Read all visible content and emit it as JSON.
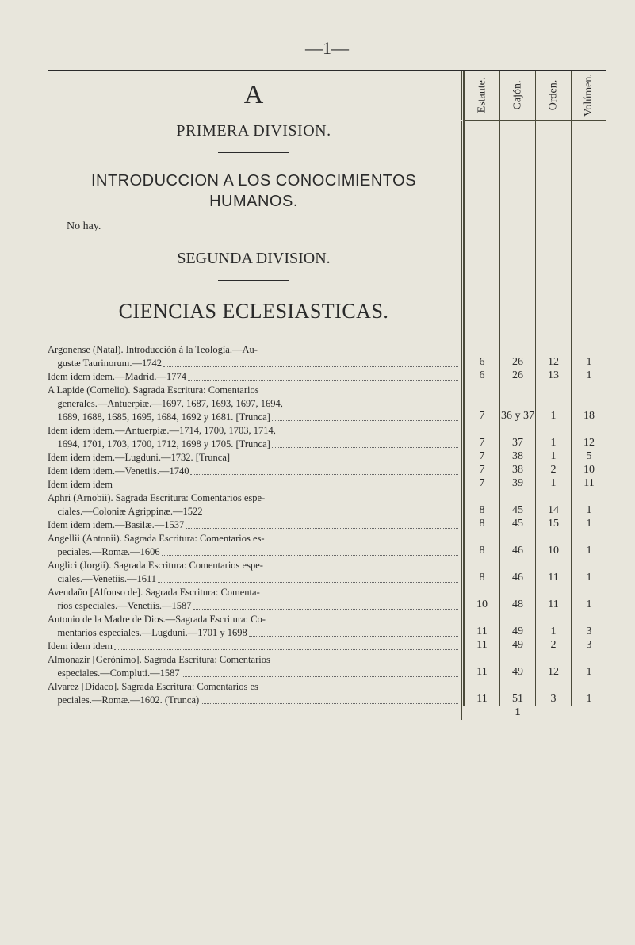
{
  "header_mark": "—1—",
  "columns": [
    "Estante.",
    "Cajón.",
    "Orden.",
    "Volúmen."
  ],
  "section_letter": "A",
  "primera": "PRIMERA DIVISION.",
  "intro": "INTRODUCCION A LOS CONOCIMIENTOS HUMANOS.",
  "nohay": "No hay.",
  "segunda": "SEGUNDA DIVISION.",
  "ciencias": "CIENCIAS ECLESIASTICAS.",
  "footer_page": "1",
  "rows": [
    {
      "text": [
        "Argonense (Natal). Introducción á la Teología.—Au-",
        "gustæ Taurinorum.—1742"
      ],
      "vals": [
        "6",
        "26",
        "12",
        "1"
      ]
    },
    {
      "text": [
        "Idem idem idem.—Madrid.—1774"
      ],
      "vals": [
        "6",
        "26",
        "13",
        "1"
      ]
    },
    {
      "text": [
        "A Lapide (Cornelio). Sagrada Escritura: Comentarios",
        "generales.—Antuerpiæ.—1697, 1687, 1693, 1697, 1694,",
        "1689, 1688, 1685, 1695, 1684, 1692 y 1681. [Trunca]"
      ],
      "vals": [
        "7",
        "36 y 37",
        "1",
        "18"
      ]
    },
    {
      "text": [
        "Idem idem idem.—Antuerpiæ.—1714, 1700, 1703, 1714,",
        "1694, 1701, 1703, 1700, 1712, 1698 y 1705. [Trunca]"
      ],
      "vals": [
        "7",
        "37",
        "1",
        "12"
      ]
    },
    {
      "text": [
        "Idem idem idem.—Lugduni.—1732. [Trunca]"
      ],
      "vals": [
        "7",
        "38",
        "1",
        "5"
      ]
    },
    {
      "text": [
        "Idem idem idem.—Venetiis.—1740"
      ],
      "vals": [
        "7",
        "38",
        "2",
        "10"
      ]
    },
    {
      "text": [
        "Idem idem idem"
      ],
      "vals": [
        "7",
        "39",
        "1",
        "11"
      ]
    },
    {
      "text": [
        "Aphri (Arnobii). Sagrada Escritura: Comentarios espe-",
        "ciales.—Coloniæ Agrippinæ.—1522"
      ],
      "vals": [
        "8",
        "45",
        "14",
        "1"
      ]
    },
    {
      "text": [
        "Idem idem idem.—Basilæ.—1537"
      ],
      "vals": [
        "8",
        "45",
        "15",
        "1"
      ]
    },
    {
      "text": [
        "Angellii (Antonii). Sagrada Escritura: Comentarios es-",
        "peciales.—Romæ.—1606"
      ],
      "vals": [
        "8",
        "46",
        "10",
        "1"
      ]
    },
    {
      "text": [
        "Anglici (Jorgii). Sagrada Escritura: Comentarios espe-",
        "ciales.—Venetiis.—1611"
      ],
      "vals": [
        "8",
        "46",
        "11",
        "1"
      ]
    },
    {
      "text": [
        "Avendaño [Alfonso de]. Sagrada Escritura: Comenta-",
        "rios especiales.—Venetiis.—1587"
      ],
      "vals": [
        "10",
        "48",
        "11",
        "1"
      ]
    },
    {
      "text": [
        "Antonio de la Madre de Dios.—Sagrada Escritura: Co-",
        "mentarios especiales.—Lugduni.—1701 y 1698"
      ],
      "vals": [
        "11",
        "49",
        "1",
        "3"
      ]
    },
    {
      "text": [
        "Idem idem idem"
      ],
      "vals": [
        "11",
        "49",
        "2",
        "3"
      ]
    },
    {
      "text": [
        "Almonazir [Gerónimo]. Sagrada Escritura: Comentarios",
        "especiales.—Compluti.—1587"
      ],
      "vals": [
        "11",
        "49",
        "12",
        "1"
      ]
    },
    {
      "text": [
        "Alvarez [Didaco]. Sagrada Escritura: Comentarios es",
        "peciales.—Romæ.—1602. (Trunca)"
      ],
      "vals": [
        "11",
        "51",
        "3",
        "1"
      ]
    }
  ]
}
